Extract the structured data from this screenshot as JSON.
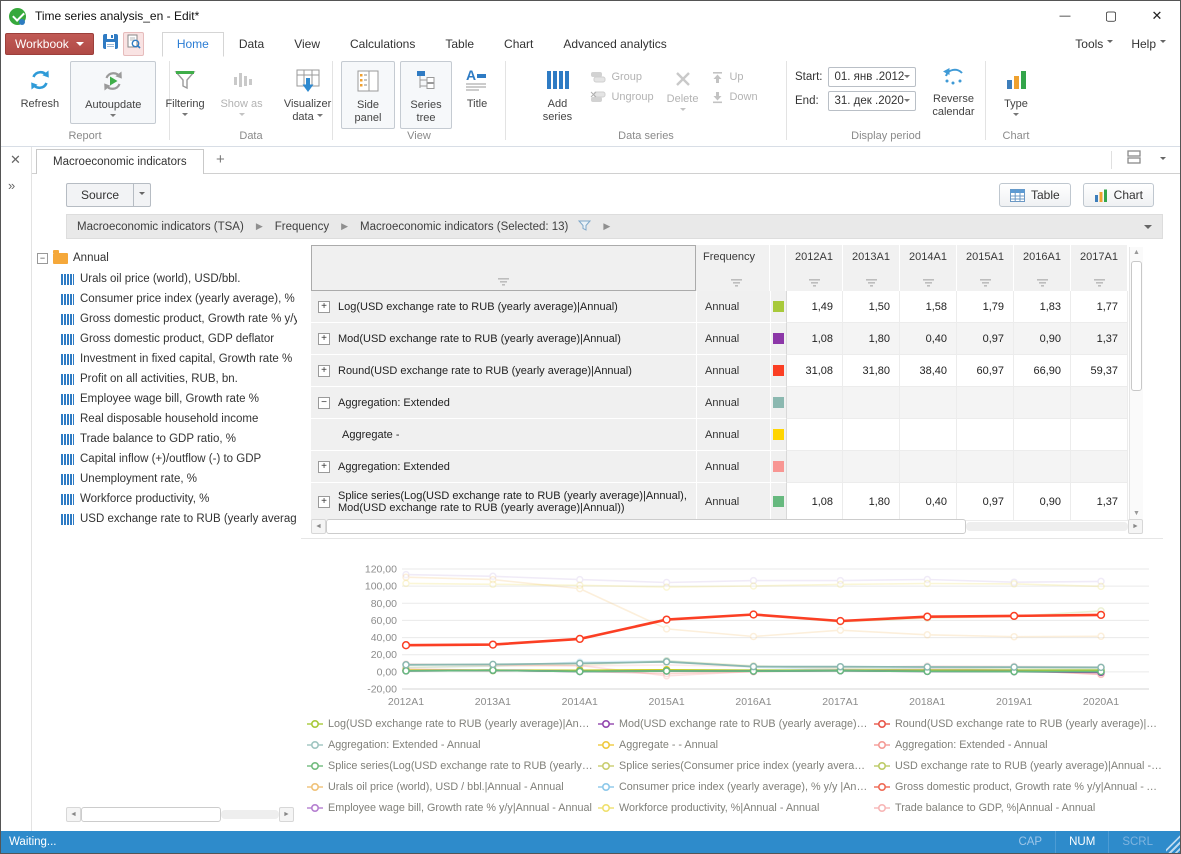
{
  "window": {
    "title": "Time series analysis_en - Edit*",
    "minimize": "—",
    "maximize": "▢",
    "close": "✕"
  },
  "menu": {
    "workbook_label": "Workbook",
    "tabs": [
      "Home",
      "Data",
      "View",
      "Calculations",
      "Table",
      "Chart",
      "Advanced analytics"
    ],
    "active_tab": "Home",
    "tools_label": "Tools",
    "help_label": "Help"
  },
  "ribbon": {
    "report": {
      "label": "Report",
      "refresh": "Refresh",
      "autoupdate": "Autoupdate"
    },
    "data": {
      "label": "Data",
      "filtering": "Filtering",
      "show_as": "Show as",
      "visualizer": "Visualizer data"
    },
    "view": {
      "label": "View",
      "side_panel": "Side panel",
      "series_tree": "Series tree",
      "title_btn": "Title"
    },
    "series": {
      "label": "Data series",
      "add": "Add series",
      "group": "Group",
      "ungroup": "Ungroup",
      "delete": "Delete",
      "up": "Up",
      "down": "Down"
    },
    "period": {
      "label": "Display period",
      "start_label": "Start:",
      "start_value": "01. янв .2012",
      "end_label": "End:",
      "end_value": "31. дек .2020",
      "reverse": "Reverse calendar"
    },
    "chart": {
      "label": "Chart",
      "type": "Type"
    }
  },
  "docbar": {
    "tab": "Macroeconomic indicators",
    "new_tab": "+"
  },
  "view_toolbar": {
    "source": "Source",
    "table_btn": "Table",
    "chart_btn": "Chart"
  },
  "breadcrumb": {
    "items": [
      "Macroeconomic indicators (TSA)",
      "Frequency",
      "Macroeconomic indicators (Selected: 13)"
    ]
  },
  "tree": {
    "root": "Annual",
    "items": [
      "Urals oil price (world), USD/bbl.",
      "Consumer price index (yearly average), % y/y",
      "Gross domestic product, Growth rate % y/y",
      "Gross domestic product, GDP deflator",
      "Investment in fixed capital, Growth rate %",
      "Profit on all activities, RUB, bn.",
      "Employee wage bill, Growth rate %",
      "Real disposable household income",
      "Trade balance to GDP ratio, %",
      "Capital inflow (+)/outflow (-) to GDP",
      "Unemployment rate, %",
      "Workforce productivity, %",
      "USD exchange rate to RUB (yearly average)"
    ]
  },
  "table": {
    "freq_header": "Frequency",
    "year_headers": [
      "2012A1",
      "2013A1",
      "2014A1",
      "2015A1",
      "2016A1",
      "2017A1"
    ],
    "rows": [
      {
        "name": "Log(USD exchange rate to RUB (yearly average)|Annual)",
        "expander": "plus",
        "indent": false,
        "freq": "Annual",
        "color": "#a8c93a",
        "values": [
          "1,49",
          "1,50",
          "1,58",
          "1,79",
          "1,83",
          "1,77"
        ]
      },
      {
        "name": "Mod(USD exchange rate to RUB (yearly average)|Annual)",
        "expander": "plus",
        "indent": false,
        "freq": "Annual",
        "color": "#8c37a8",
        "values": [
          "1,08",
          "1,80",
          "0,40",
          "0,97",
          "0,90",
          "1,37"
        ]
      },
      {
        "name": "Round(USD exchange rate to RUB (yearly average)|Annual)",
        "expander": "plus",
        "indent": false,
        "freq": "Annual",
        "color": "#fb3f24",
        "values": [
          "31,08",
          "31,80",
          "38,40",
          "60,97",
          "66,90",
          "59,37"
        ]
      },
      {
        "name": "Aggregation: Extended",
        "expander": "minus",
        "indent": false,
        "freq": "Annual",
        "color": "#8bb8b0",
        "values": [
          "",
          "",
          "",
          "",
          "",
          ""
        ]
      },
      {
        "name": "Aggregate -",
        "expander": "none",
        "indent": true,
        "freq": "Annual",
        "color": "#ffd500",
        "values": [
          "",
          "",
          "",
          "",
          "",
          ""
        ]
      },
      {
        "name": "Aggregation: Extended",
        "expander": "plus",
        "indent": false,
        "freq": "Annual",
        "color": "#f89693",
        "values": [
          "",
          "",
          "",
          "",
          "",
          ""
        ]
      },
      {
        "name": "Splice series(Log(USD exchange rate to RUB (yearly average)|Annual), Mod(USD exchange rate to RUB (yearly average)|Annual))",
        "expander": "plus",
        "indent": false,
        "freq": "Annual",
        "color": "#67b97f",
        "values": [
          "1,08",
          "1,80",
          "0,40",
          "0,97",
          "0,90",
          "1,37"
        ]
      }
    ]
  },
  "chart_data": {
    "type": "line",
    "x": [
      "2012A1",
      "2013A1",
      "2014A1",
      "2015A1",
      "2016A1",
      "2017A1",
      "2018A1",
      "2019A1",
      "2020A1"
    ],
    "ylim": [
      -20,
      120
    ],
    "yticks": [
      120,
      100,
      80,
      60,
      40,
      20,
      0,
      -20
    ],
    "ytick_labels": [
      "120,00",
      "100,00",
      "80,00",
      "60,00",
      "40,00",
      "20,00",
      "0,00",
      "-20,00"
    ],
    "grid": "horizontal",
    "legend_position": "bottom",
    "series": [
      {
        "name": "Employee wage bill, Growth rate % y/y|Annual - Annual",
        "color": "#cdb9e6",
        "faded": true,
        "width": 1.6,
        "values": [
          113.5,
          111.5,
          107.6,
          104.2,
          106.5,
          106.5,
          107.8,
          104.6,
          105.5
        ]
      },
      {
        "name": "Urals oil price (world), USD / bbl.|Annual - Annual",
        "color": "#f5c981",
        "faded": true,
        "width": 1.6,
        "values": [
          110.4,
          107.6,
          97.1,
          50.1,
          41.2,
          48.6,
          43.2,
          41.0,
          41.5
        ]
      },
      {
        "name": "Workforce productivity, %|Annual - Annual",
        "color": "#efe06e",
        "faded": true,
        "width": 1.6,
        "values": [
          103.2,
          102.1,
          101.0,
          98.9,
          100.2,
          102.0,
          103.1,
          102.6,
          99.7
        ]
      },
      {
        "name": "USD exchange rate to RUB (yearly average)|Annual - Annual",
        "color": "#bfcc63",
        "faded": true,
        "width": 1.6,
        "values": [
          31.1,
          31.8,
          38.4,
          61.0,
          67.0,
          58.3,
          62.7,
          64.7,
          71.1
        ]
      },
      {
        "name": "Consumer price index (yearly average), % y/y |Annual - Annual",
        "color": "#8cc8ea",
        "faded": true,
        "width": 1.6,
        "values": [
          5.1,
          6.6,
          11.4,
          12.9,
          5.4,
          2.5,
          4.3,
          3.0,
          3.4
        ]
      },
      {
        "name": "Splice series(Consumer price index (yearly average), % y/y|Annual)",
        "color": "#c9cd6f",
        "faded": true,
        "width": 1.6,
        "values": [
          5.1,
          6.8,
          7.8,
          12.9,
          7.1,
          3.7,
          2.9,
          4.5,
          3.4
        ]
      },
      {
        "name": "Gross domestic product, Growth rate % y/y|Annual - Annual",
        "color": "#ef6a55",
        "faded": true,
        "width": 1.6,
        "values": [
          3.4,
          1.8,
          0.7,
          -2.0,
          0.2,
          1.8,
          2.8,
          2.0,
          -3.0
        ]
      },
      {
        "name": "Aggregation: Extended - Annual (2)",
        "color": "#f89693",
        "faded": true,
        "width": 1.6,
        "values": [
          9.0,
          8.2,
          7.4,
          -4.6,
          0.4,
          1.9,
          2.9,
          2.1,
          -2.9
        ]
      },
      {
        "name": "Trade balance to GDP, %|Annual - Annual",
        "color": "#f7b6b6",
        "faded": true,
        "width": 1.6,
        "values": [
          8.5,
          7.5,
          7.0,
          8.0,
          6.0,
          5.0,
          7.0,
          6.5,
          5.5
        ]
      },
      {
        "name": "Aggregate - - Annual",
        "color": "#ffd500",
        "faded": false,
        "width": 1.6,
        "values": [
          1.9,
          2.1,
          1.8,
          2.4,
          1.8,
          1.7,
          1.6,
          1.6,
          1.5
        ]
      },
      {
        "name": "Log(USD exchange rate to RUB (yearly average)|Annual) - Annual",
        "color": "#a8c93a",
        "faded": false,
        "width": 1.8,
        "values": [
          1.49,
          1.5,
          1.58,
          1.79,
          1.83,
          1.77,
          1.81,
          1.81,
          1.85
        ]
      },
      {
        "name": "Mod(USD exchange rate to RUB (yearly average)|Annual) - Annual",
        "color": "#8c37a8",
        "faded": false,
        "width": 1.8,
        "values": [
          1.08,
          1.8,
          0.4,
          0.97,
          0.9,
          1.37,
          0.55,
          0.35,
          -0.6
        ]
      },
      {
        "name": "Splice series(Log(USD exchange rate to RUB (yearly average)|Annual), Mod(USD exchange rate to RUB (yearly average)|Annual))",
        "color": "#67b97f",
        "faded": false,
        "width": 1.8,
        "values": [
          1.08,
          1.8,
          0.4,
          0.97,
          0.9,
          1.37,
          0.55,
          0.35,
          0.3
        ]
      },
      {
        "name": "Aggregation: Extended - Annual",
        "color": "#8bb8b0",
        "faded": false,
        "width": 1.8,
        "values": [
          8.2,
          8.7,
          9.9,
          11.7,
          6.1,
          6.0,
          5.7,
          5.5,
          5.2
        ]
      },
      {
        "name": "Round(USD exchange rate to RUB (yearly average)|Annual) - Annual",
        "color": "#fb3f24",
        "faded": false,
        "width": 2.6,
        "values": [
          31.08,
          31.8,
          38.4,
          60.97,
          66.9,
          59.37,
          64.3,
          65.3,
          66.4
        ]
      }
    ]
  },
  "legend": {
    "items": [
      {
        "color": "#a8c93a",
        "label": "Log(USD exchange rate to RUB (yearly average)|Annual) - Annual"
      },
      {
        "color": "#9247ae",
        "label": "Mod(USD exchange rate to RUB (yearly average)|Annual) - Annual"
      },
      {
        "color": "#e8574a",
        "label": "Round(USD exchange rate to RUB (yearly average)|Annual) - Annual"
      },
      {
        "color": "#9fc5c0",
        "label": "Aggregation: Extended - Annual"
      },
      {
        "color": "#efc93f",
        "label": "Aggregate - - Annual"
      },
      {
        "color": "#f49b96",
        "label": "Aggregation: Extended - Annual"
      },
      {
        "color": "#72bb7e",
        "label": "Splice series(Log(USD exchange rate to RUB (yearly average)|Annual), Mod(USD exchange rate to RUB (yearly average)|Annual))"
      },
      {
        "color": "#c9cd6f",
        "label": "Splice series(Consumer price index (yearly average), % y/y|Annual)"
      },
      {
        "color": "#bccb66",
        "label": "USD exchange rate to RUB (yearly average)|Annual - Annual"
      },
      {
        "color": "#f0c279",
        "label": "Urals oil price (world), USD / bbl.|Annual - Annual"
      },
      {
        "color": "#8cc8ea",
        "label": "Consumer price index (yearly average), % y/y |Annual - Annual"
      },
      {
        "color": "#ef6a55",
        "label": "Gross domestic product, Growth rate % y/y|Annual - Annual"
      },
      {
        "color": "#b57fd0",
        "label": "Employee wage bill, Growth rate % y/y|Annual - Annual"
      },
      {
        "color": "#efe06e",
        "label": "Workforce productivity, %|Annual - Annual"
      },
      {
        "color": "#f7b6b6",
        "label": "Trade balance to GDP, %|Annual - Annual"
      }
    ]
  },
  "status": {
    "text": "Waiting...",
    "cap": "CAP",
    "num": "NUM",
    "scrl": "SCRL"
  }
}
